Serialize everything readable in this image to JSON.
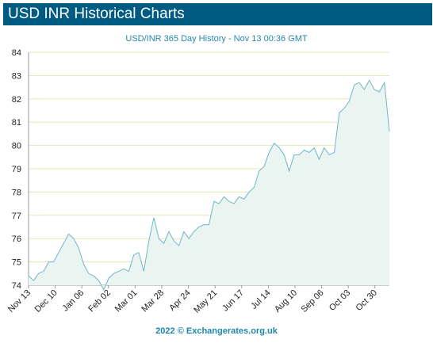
{
  "header": {
    "title": "USD INR Historical Charts"
  },
  "footer": {
    "text": "2022 © Exchangerates.org.uk"
  },
  "colors": {
    "header_bg": "#005b82",
    "line": "#6fb6c8",
    "area": "#eaf4f0",
    "grid": "#e8e5b8"
  },
  "chart_data": {
    "type": "area",
    "title": "USD/INR 365 Day History - Nov 13 00:36 GMT",
    "xlabel": "",
    "ylabel": "",
    "ylim": [
      74,
      84
    ],
    "yticks": [
      74,
      75,
      76,
      77,
      78,
      79,
      80,
      81,
      82,
      83,
      84
    ],
    "grid": true,
    "legend": "none",
    "xticks": [
      "Nov 13",
      "Dec 10",
      "Jan 06",
      "Feb 02",
      "Mar 01",
      "Mar 28",
      "Apr 24",
      "May 21",
      "Jun 17",
      "Jul 14",
      "Aug 10",
      "Sep 06",
      "Oct 03",
      "Oct 30"
    ],
    "series": [
      {
        "values": [
          74.4,
          74.2,
          74.5,
          74.6,
          75.0,
          75.0,
          75.4,
          75.8,
          76.2,
          76.0,
          75.6,
          74.9,
          74.5,
          74.4,
          74.2,
          73.8,
          74.3,
          74.5,
          74.6,
          74.7,
          74.6,
          75.3,
          75.4,
          74.6,
          75.9,
          76.9,
          76.0,
          75.8,
          76.3,
          75.9,
          75.7,
          76.3,
          76.0,
          76.3,
          76.5,
          76.6,
          76.6,
          77.6,
          77.5,
          77.8,
          77.6,
          77.5,
          77.8,
          77.7,
          78.0,
          78.2,
          78.9,
          79.1,
          79.7,
          80.1,
          79.9,
          79.6,
          78.9,
          79.6,
          79.6,
          79.8,
          79.7,
          79.9,
          79.4,
          79.9,
          79.6,
          79.7,
          81.4,
          81.6,
          81.9,
          82.6,
          82.7,
          82.4,
          82.8,
          82.4,
          82.3,
          82.7,
          80.6
        ]
      }
    ]
  }
}
